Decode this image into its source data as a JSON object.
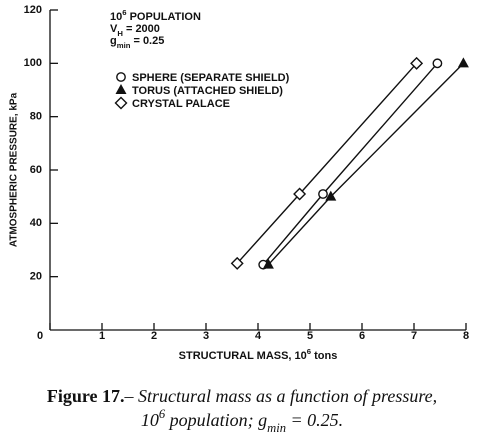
{
  "chart_data": {
    "type": "line",
    "annotations": [
      [
        {
          "text": "10"
        },
        {
          "sup": "6"
        },
        {
          "text": " POPULATION"
        }
      ],
      [
        {
          "text": "V"
        },
        {
          "sub": "H"
        },
        {
          "text": " = 2000"
        }
      ],
      [
        {
          "text": "g"
        },
        {
          "sub": "min"
        },
        {
          "text": " = 0.25"
        }
      ]
    ],
    "x_label": [
      {
        "text": "STRUCTURAL MASS, 10"
      },
      {
        "sup": "6"
      },
      {
        "text": " tons"
      }
    ],
    "y_label": "ATMOSPHERIC PRESSURE, kPa",
    "caption": [
      [
        {
          "bold": "Figure 17."
        },
        {
          "text": "– Structural mass as a function of pressure,"
        }
      ],
      [
        {
          "text": "10"
        },
        {
          "sup": "6"
        },
        {
          "text": " population; g"
        },
        {
          "sub": "min"
        },
        {
          "text": " = 0.25."
        }
      ]
    ],
    "xlim": [
      0,
      8
    ],
    "ylim": [
      0,
      120
    ],
    "xticks": [
      0,
      1,
      2,
      3,
      4,
      5,
      6,
      7,
      8
    ],
    "yticks": [
      20,
      40,
      60,
      80,
      100,
      120
    ],
    "series": [
      {
        "name": "SPHERE (SEPARATE SHIELD)",
        "marker": "circle",
        "color": "#111",
        "x": [
          4.1,
          5.25,
          7.45
        ],
        "values": [
          24.5,
          51,
          100
        ]
      },
      {
        "name": "TORUS (ATTACHED SHIELD)",
        "marker": "triangle",
        "color": "#111",
        "x": [
          4.2,
          5.4,
          7.95
        ],
        "values": [
          24.5,
          50,
          100
        ]
      },
      {
        "name": "CRYSTAL PALACE",
        "marker": "diamond",
        "color": "#111",
        "x": [
          3.6,
          4.8,
          7.05
        ],
        "values": [
          25,
          51,
          100
        ]
      }
    ]
  }
}
